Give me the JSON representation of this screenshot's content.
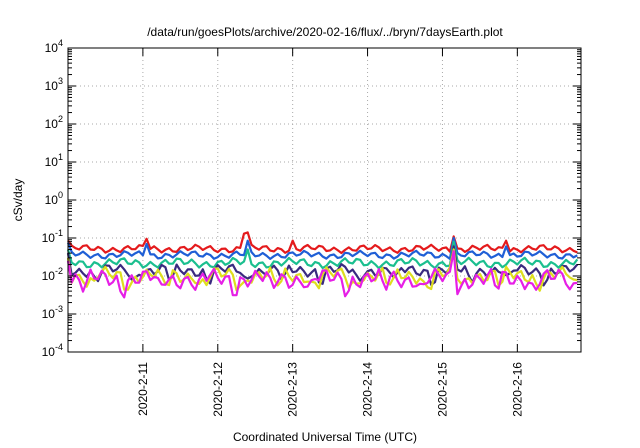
{
  "chart_data": {
    "type": "line",
    "title": "/data/run/goesPlots/archive/2020-02-16/flux/../bryn/7daysEarth.plot",
    "xlabel": "Coordinated Universal Time (UTC)",
    "ylabel": "cSv/day",
    "y_scale": "log",
    "ylim": [
      0.0001,
      10000
    ],
    "xlim": [
      0,
      6.85
    ],
    "x_reference": "2020-02-10",
    "grid": true,
    "y_ticks": [
      {
        "value": 0.0001,
        "base": "10",
        "exp": "-4"
      },
      {
        "value": 0.001,
        "base": "10",
        "exp": "-3"
      },
      {
        "value": 0.01,
        "base": "10",
        "exp": "-2"
      },
      {
        "value": 0.1,
        "base": "10",
        "exp": "-1"
      },
      {
        "value": 1,
        "base": "10",
        "exp": "0"
      },
      {
        "value": 10,
        "base": "10",
        "exp": "1"
      },
      {
        "value": 100,
        "base": "10",
        "exp": "2"
      },
      {
        "value": 1000,
        "base": "10",
        "exp": "3"
      },
      {
        "value": 10000,
        "base": "10",
        "exp": "4"
      }
    ],
    "x_ticks": [
      {
        "value": 1,
        "label": "2020-2-11"
      },
      {
        "value": 2,
        "label": "2020-2-12"
      },
      {
        "value": 3,
        "label": "2020-2-13"
      },
      {
        "value": 4,
        "label": "2020-2-14"
      },
      {
        "value": 5,
        "label": "2020-2-15"
      },
      {
        "value": 6,
        "label": "2020-2-16"
      }
    ],
    "series": [
      {
        "color": "#e41a1c",
        "base": 0.052,
        "variation": 0.22,
        "spikes": [
          [
            0.0,
            0.085
          ],
          [
            1.05,
            0.095
          ],
          [
            2.35,
            0.13
          ],
          [
            2.4,
            0.14
          ],
          [
            3.0,
            0.085
          ],
          [
            5.15,
            0.11
          ],
          [
            5.85,
            0.085
          ]
        ]
      },
      {
        "color": "#1f5fd6",
        "base": 0.036,
        "variation": 0.22,
        "spikes": [
          [
            0.0,
            0.075
          ],
          [
            1.05,
            0.07
          ],
          [
            2.4,
            0.085
          ],
          [
            5.15,
            0.1
          ],
          [
            5.85,
            0.06
          ]
        ]
      },
      {
        "color": "#1bbf8f",
        "base": 0.022,
        "variation": 0.28,
        "spikes": [
          [
            0.0,
            0.05
          ],
          [
            2.4,
            0.05
          ],
          [
            5.15,
            0.08
          ]
        ]
      },
      {
        "color": "#3a2a80",
        "base": 0.014,
        "variation": 0.35,
        "spikes": [
          [
            0.0,
            0.04
          ],
          [
            5.15,
            0.06
          ]
        ]
      },
      {
        "color": "#dede1e",
        "base": 0.0105,
        "variation": 0.45,
        "spikes": [
          [
            0.0,
            0.03
          ],
          [
            5.15,
            0.05
          ]
        ]
      },
      {
        "color": "#e61fe6",
        "base": 0.0085,
        "variation": 0.55,
        "spikes": [
          [
            0.0,
            0.025
          ],
          [
            5.15,
            0.045
          ]
        ]
      }
    ]
  }
}
